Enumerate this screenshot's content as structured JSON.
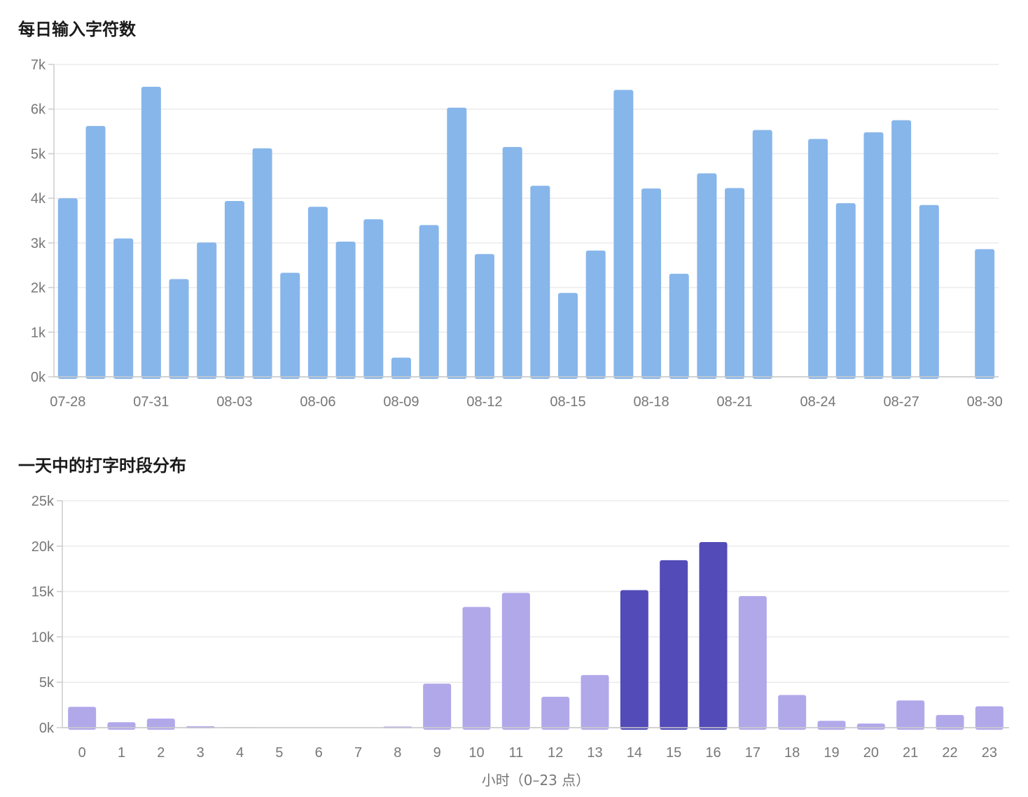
{
  "chart_data": [
    {
      "type": "bar",
      "title": "每日输入字符数",
      "xlabel": "",
      "ylabel": "",
      "categories": [
        "07-28",
        "07-29",
        "07-30",
        "07-31",
        "08-01",
        "08-02",
        "08-03",
        "08-04",
        "08-05",
        "08-06",
        "08-07",
        "08-08",
        "08-09",
        "08-10",
        "08-11",
        "08-12",
        "08-13",
        "08-14",
        "08-15",
        "08-16",
        "08-17",
        "08-18",
        "08-19",
        "08-20",
        "08-21",
        "08-22",
        "08-23",
        "08-24",
        "08-25",
        "08-26",
        "08-27",
        "08-28",
        "08-29",
        "08-30"
      ],
      "values": [
        4000,
        5620,
        3100,
        6500,
        2190,
        3010,
        3940,
        5120,
        2330,
        3810,
        3030,
        3530,
        430,
        3400,
        6030,
        2750,
        5150,
        4280,
        1880,
        2830,
        6430,
        4220,
        2310,
        4560,
        4230,
        5530,
        0,
        5330,
        3890,
        5480,
        5750,
        3850,
        0,
        2860
      ],
      "x_tick_labels": [
        "07-28",
        "07-31",
        "08-03",
        "08-06",
        "08-09",
        "08-12",
        "08-15",
        "08-18",
        "08-21",
        "08-24",
        "08-27",
        "08-30"
      ],
      "y_tick_labels": [
        "0k",
        "1k",
        "2k",
        "3k",
        "4k",
        "5k",
        "6k",
        "7k"
      ],
      "ylim": [
        0,
        7000
      ],
      "grid": true,
      "color": "#87b6ea"
    },
    {
      "type": "bar",
      "title": "一天中的打字时段分布",
      "xlabel": "小时（0–23 点）",
      "ylabel": "",
      "categories": [
        "0",
        "1",
        "2",
        "3",
        "4",
        "5",
        "6",
        "7",
        "8",
        "9",
        "10",
        "11",
        "12",
        "13",
        "14",
        "15",
        "16",
        "17",
        "18",
        "19",
        "20",
        "21",
        "22",
        "23"
      ],
      "values": [
        2300,
        600,
        1000,
        150,
        50,
        0,
        0,
        0,
        130,
        4850,
        13300,
        14850,
        3400,
        5800,
        15150,
        18450,
        20450,
        14500,
        3600,
        750,
        450,
        3000,
        1400,
        2350
      ],
      "highlight": [
        false,
        false,
        false,
        false,
        false,
        false,
        false,
        false,
        false,
        false,
        false,
        false,
        false,
        false,
        true,
        true,
        true,
        false,
        false,
        false,
        false,
        false,
        false,
        false
      ],
      "y_tick_labels": [
        "0k",
        "5k",
        "10k",
        "15k",
        "20k",
        "25k"
      ],
      "ylim": [
        0,
        25000
      ],
      "grid": true,
      "color": "#b1a8ea",
      "highlight_color": "#534bb8"
    }
  ]
}
